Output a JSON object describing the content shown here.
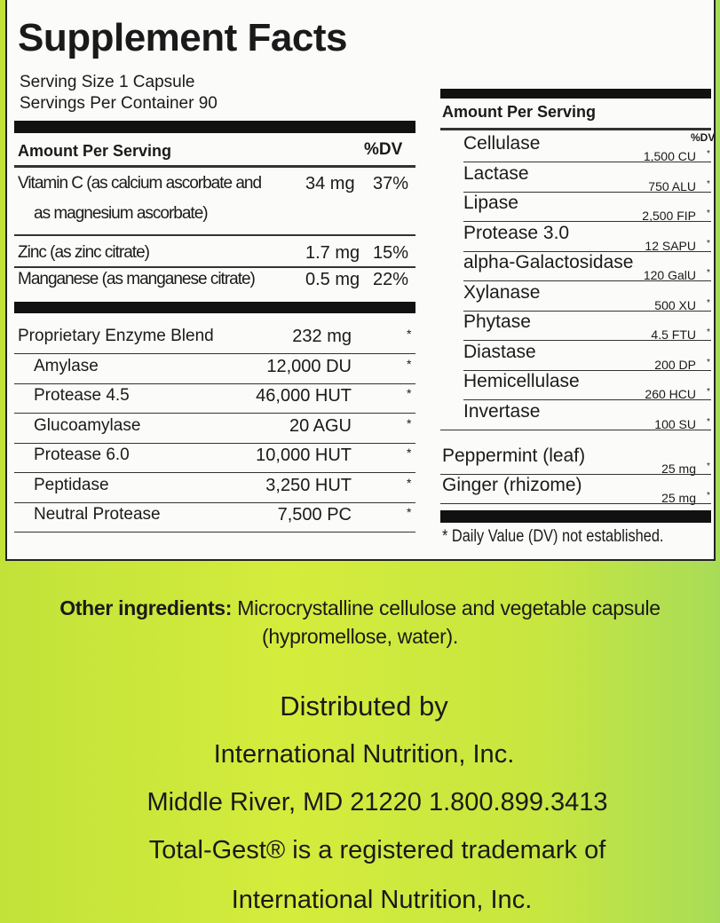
{
  "label": {
    "title": "Supplement Facts",
    "serving_size": "Serving Size 1 Capsule",
    "servings_per_container": "Servings Per Container 90",
    "left_header": "Amount Per Serving",
    "left_dv_header": "%DV",
    "vitamins": [
      {
        "name": "Vitamin C (as calcium ascorbate and",
        "name2": "as magnesium ascorbate)",
        "amount": "34 mg",
        "dv": "37%"
      },
      {
        "name": "Zinc (as zinc citrate)",
        "amount": "1.7 mg",
        "dv": "15%"
      },
      {
        "name": "Manganese (as manganese citrate)",
        "amount": "0.5 mg",
        "dv": "22%"
      }
    ],
    "blend": [
      {
        "name": "Proprietary Enzyme Blend",
        "amount": "232 mg",
        "dv": "*"
      },
      {
        "name": "Amylase",
        "amount": "12,000 DU",
        "dv": "*"
      },
      {
        "name": "Protease 4.5",
        "amount": "46,000 HUT",
        "dv": "*"
      },
      {
        "name": "Glucoamylase",
        "amount": "20 AGU",
        "dv": "*"
      },
      {
        "name": "Protease 6.0",
        "amount": "10,000 HUT",
        "dv": "*"
      },
      {
        "name": "Peptidase",
        "amount": "3,250 HUT",
        "dv": "*"
      },
      {
        "name": "Neutral Protease",
        "amount": "7,500 PC",
        "dv": "*"
      }
    ],
    "right_header": "Amount Per Serving",
    "right_dv_header": "%DV",
    "right_rows": [
      {
        "name": "Cellulase",
        "amount": "1,500 CU",
        "dv": "*"
      },
      {
        "name": "Lactase",
        "amount": "750 ALU",
        "dv": "*"
      },
      {
        "name": "Lipase",
        "amount": "2,500 FIP",
        "dv": "*"
      },
      {
        "name": "Protease 3.0",
        "amount": "12 SAPU",
        "dv": "*"
      },
      {
        "name": "alpha-Galactosidase",
        "amount": "120 GalU",
        "dv": "*"
      },
      {
        "name": "Xylanase",
        "amount": "500 XU",
        "dv": "*"
      },
      {
        "name": "Phytase",
        "amount": "4.5 FTU",
        "dv": "*"
      },
      {
        "name": "Diastase",
        "amount": "200 DP",
        "dv": "*"
      },
      {
        "name": "Hemicellulase",
        "amount": "260 HCU",
        "dv": "*"
      },
      {
        "name": "Invertase",
        "amount": "100 SU",
        "dv": "*"
      },
      {
        "name": "Peppermint (leaf)",
        "amount": "25 mg",
        "dv": "*"
      },
      {
        "name": "Ginger (rhizome)",
        "amount": "25 mg",
        "dv": "*"
      }
    ],
    "footnote": "* Daily Value (DV) not established."
  },
  "other": {
    "label": "Other ingredients:",
    "text1": "Microcrystalline cellulose and vegetable capsule",
    "text2": "(hypromellose, water)."
  },
  "distributor": {
    "line1": "Distributed by",
    "line2": "International Nutrition, Inc.",
    "line3": "Middle River, MD 21220 1.800.899.3413",
    "line4": "Total-Gest® is a registered trademark of",
    "line5": "International Nutrition, Inc."
  },
  "colors": {
    "background": "#c8e63e",
    "panel": "#fbfbf9",
    "ink": "#1a1a1a"
  }
}
